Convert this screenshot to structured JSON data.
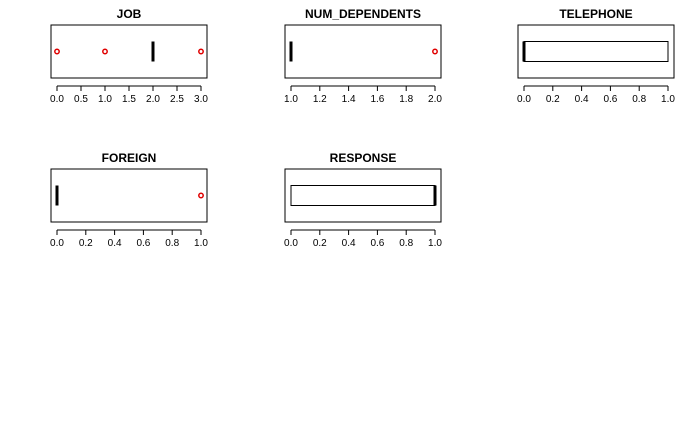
{
  "chart_data": [
    {
      "type": "boxplot",
      "title": "JOB",
      "xlabel": "",
      "ylabel": "",
      "xlim": [
        0,
        3
      ],
      "ticks": [
        "0.0",
        "0.5",
        "1.0",
        "1.5",
        "2.0",
        "2.5",
        "3.0"
      ],
      "box": {
        "min": 2,
        "q1": 2,
        "median": 2,
        "q3": 2,
        "max": 2
      },
      "outliers": [
        0,
        1,
        3
      ]
    },
    {
      "type": "boxplot",
      "title": "NUM_DEPENDENTS",
      "xlabel": "",
      "ylabel": "",
      "xlim": [
        1,
        2
      ],
      "ticks": [
        "1.0",
        "1.2",
        "1.4",
        "1.6",
        "1.8",
        "2.0"
      ],
      "box": {
        "min": 1,
        "q1": 1,
        "median": 1,
        "q3": 1,
        "max": 1
      },
      "outliers": [
        2
      ]
    },
    {
      "type": "boxplot",
      "title": "TELEPHONE",
      "xlabel": "",
      "ylabel": "",
      "xlim": [
        0,
        1
      ],
      "ticks": [
        "0.0",
        "0.2",
        "0.4",
        "0.6",
        "0.8",
        "1.0"
      ],
      "box": {
        "min": 0,
        "q1": 0,
        "median": 0,
        "q3": 1,
        "max": 1
      },
      "outliers": []
    },
    {
      "type": "boxplot",
      "title": "FOREIGN",
      "xlabel": "",
      "ylabel": "",
      "xlim": [
        0,
        1
      ],
      "ticks": [
        "0.0",
        "0.2",
        "0.4",
        "0.6",
        "0.8",
        "1.0"
      ],
      "box": {
        "min": 0,
        "q1": 0,
        "median": 0,
        "q3": 0,
        "max": 0
      },
      "outliers": [
        1
      ]
    },
    {
      "type": "boxplot",
      "title": "RESPONSE",
      "xlabel": "",
      "ylabel": "",
      "xlim": [
        0,
        1
      ],
      "ticks": [
        "0.0",
        "0.2",
        "0.4",
        "0.6",
        "0.8",
        "1.0"
      ],
      "box": {
        "min": 0,
        "q1": 0,
        "median": 1,
        "q3": 1,
        "max": 1
      },
      "outliers": []
    }
  ],
  "colors": {
    "outlier": "#e00000",
    "box": "#000000",
    "background": "#ffffff"
  }
}
